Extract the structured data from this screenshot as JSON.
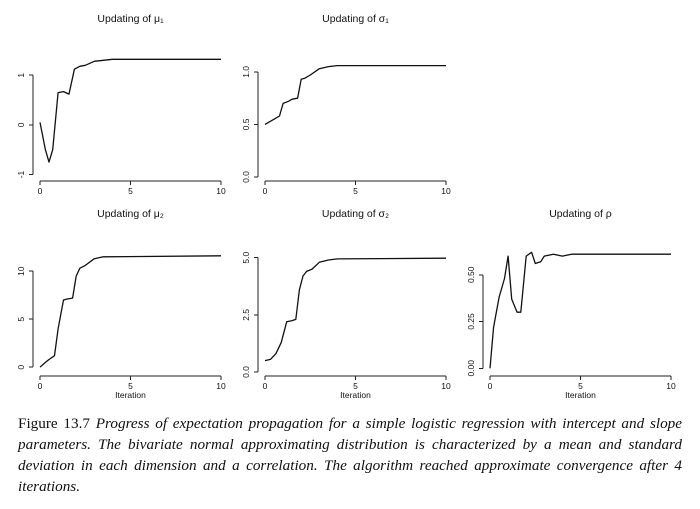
{
  "chart_data": [
    {
      "type": "line",
      "title": "Updating of μ₁",
      "xlabel": "",
      "ylabel": "",
      "xlim": [
        0,
        10
      ],
      "ylim": [
        -1.05,
        1.85
      ],
      "xticks": [
        0,
        5,
        10
      ],
      "yticks": [
        -1,
        0,
        1
      ],
      "x": [
        0,
        0.3,
        0.5,
        0.7,
        1.0,
        1.3,
        1.6,
        1.9,
        2.2,
        2.5,
        3.0,
        3.5,
        4.0,
        10
      ],
      "y": [
        0.05,
        -0.5,
        -0.75,
        -0.5,
        0.65,
        0.67,
        0.62,
        1.12,
        1.18,
        1.2,
        1.28,
        1.3,
        1.32,
        1.32
      ]
    },
    {
      "type": "line",
      "title": "Updating of σ₁",
      "xlabel": "",
      "ylabel": "",
      "xlim": [
        0,
        10
      ],
      "ylim": [
        0,
        1.37
      ],
      "xticks": [
        0,
        5,
        10
      ],
      "yticks": [
        0.0,
        0.5,
        1.0
      ],
      "ytick_labels": [
        "0.0",
        "0.5",
        "1.0"
      ],
      "x": [
        0,
        0.2,
        0.5,
        0.8,
        1.0,
        1.3,
        1.5,
        1.8,
        2.0,
        2.2,
        2.5,
        3.0,
        3.5,
        4.0,
        10
      ],
      "y": [
        0.5,
        0.52,
        0.55,
        0.58,
        0.7,
        0.72,
        0.74,
        0.75,
        0.93,
        0.94,
        0.97,
        1.03,
        1.05,
        1.06,
        1.06
      ]
    },
    {
      "type": "line",
      "title": "Updating of μ₂",
      "xlabel": "Iteration",
      "ylabel": "",
      "xlim": [
        0,
        10
      ],
      "ylim": [
        -0.5,
        14.5
      ],
      "xticks": [
        0,
        5,
        10
      ],
      "yticks": [
        0,
        5,
        10
      ],
      "x": [
        0,
        0.3,
        0.5,
        0.8,
        1.0,
        1.3,
        1.5,
        1.8,
        2.0,
        2.2,
        2.5,
        3.0,
        3.5,
        10
      ],
      "y": [
        0,
        0.5,
        0.8,
        1.2,
        4.0,
        7.0,
        7.1,
        7.2,
        9.5,
        10.3,
        10.6,
        11.3,
        11.5,
        11.6
      ]
    },
    {
      "type": "line",
      "title": "Updating of σ₂",
      "xlabel": "Iteration",
      "ylabel": "",
      "xlim": [
        0,
        10
      ],
      "ylim": [
        0,
        6.3
      ],
      "xticks": [
        0,
        5,
        10
      ],
      "yticks": [
        0.0,
        2.5,
        5.0
      ],
      "ytick_labels": [
        "0.0",
        "2.5",
        "5.0"
      ],
      "x": [
        0,
        0.3,
        0.6,
        0.9,
        1.2,
        1.5,
        1.7,
        1.9,
        2.1,
        2.3,
        2.6,
        3.0,
        3.5,
        4.0,
        10
      ],
      "y": [
        0.5,
        0.55,
        0.8,
        1.3,
        2.2,
        2.25,
        2.3,
        3.6,
        4.2,
        4.4,
        4.5,
        4.8,
        4.9,
        4.95,
        4.98
      ]
    },
    {
      "type": "line",
      "title": "Updating of ρ",
      "xlabel": "Iteration",
      "ylabel": "",
      "xlim": [
        0,
        10
      ],
      "ylim": [
        -0.02,
        0.75
      ],
      "xticks": [
        0,
        5,
        10
      ],
      "yticks": [
        0.0,
        0.25,
        0.5
      ],
      "ytick_labels": [
        "0.00",
        "0.25",
        "0.50"
      ],
      "x": [
        0,
        0.2,
        0.5,
        0.8,
        1.0,
        1.2,
        1.5,
        1.7,
        2.0,
        2.3,
        2.5,
        2.8,
        3.0,
        3.5,
        4.0,
        4.5,
        10
      ],
      "y": [
        0.0,
        0.22,
        0.38,
        0.48,
        0.6,
        0.37,
        0.3,
        0.3,
        0.6,
        0.62,
        0.56,
        0.57,
        0.6,
        0.61,
        0.6,
        0.61,
        0.61
      ]
    }
  ],
  "caption": {
    "label": "Figure 13.7",
    "text": "Progress of expectation propagation for a simple logistic regression with intercept and slope parameters. The bivariate normal approximating distribution is characterized by a mean and standard deviation in each dimension and a correlation. The algorithm reached approximate convergence after 4 iterations."
  }
}
